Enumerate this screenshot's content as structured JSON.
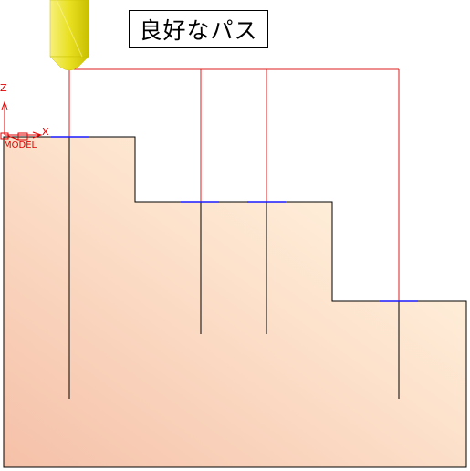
{
  "title": "良好なパス",
  "axis_triad": {
    "z_label": "Z",
    "x_label": "X",
    "model_label": "MODEL",
    "icon": "axis-triad-icon"
  },
  "tool": {
    "icon": "end-mill-tool-icon",
    "color": "#e8e020"
  },
  "colors": {
    "part_fill_light": "#fff7e6",
    "part_fill_dark": "#f7c8b2",
    "part_outline": "#000000",
    "rapid_path": "#dd1c1c",
    "plunge_path": "#000000",
    "cut_path": "#1a1aff",
    "axis": "#e00000"
  }
}
